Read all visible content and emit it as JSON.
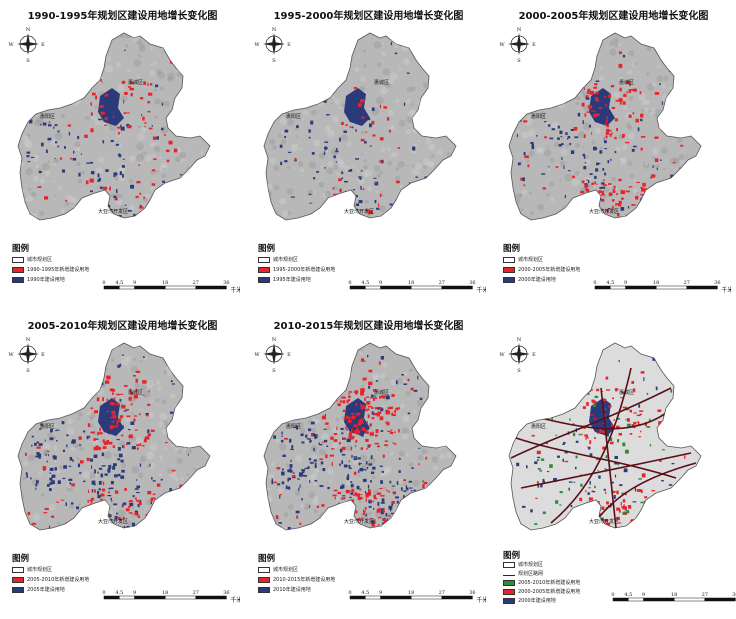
{
  "panels": [
    {
      "title": "1990-1995年规划区建设用地增长变化图",
      "legend_title": "图例",
      "legend": [
        {
          "label": "城市规划区",
          "color": "#ffffff"
        },
        {
          "label": "1990-1995年新增建设用地",
          "color": "#e8242a"
        },
        {
          "label": "1990年建设用地",
          "color": "#2b3a7a"
        }
      ],
      "mode": "early",
      "red_weight": 0.3
    },
    {
      "title": "1995-2000年规划区建设用地增长变化图",
      "legend_title": "图例",
      "legend": [
        {
          "label": "城市规划区",
          "color": "#ffffff"
        },
        {
          "label": "1995-2000年新增建设用地",
          "color": "#e8242a"
        },
        {
          "label": "1995年建设用地",
          "color": "#2b3a7a"
        }
      ],
      "mode": "early",
      "red_weight": 0.15
    },
    {
      "title": "2000-2005年规划区建设用地增长变化图",
      "legend_title": "图例",
      "legend": [
        {
          "label": "城市规划区",
          "color": "#ffffff"
        },
        {
          "label": "2000-2005年新增建设用地",
          "color": "#e8242a"
        },
        {
          "label": "2000年建设用地",
          "color": "#2b3a7a"
        }
      ],
      "mode": "mid",
      "red_weight": 0.6
    },
    {
      "title": "2005-2010年规划区建设用地增长变化图",
      "legend_title": "图例",
      "legend": [
        {
          "label": "城市规划区",
          "color": "#ffffff"
        },
        {
          "label": "2005-2010年新增建设用地",
          "color": "#e8242a"
        },
        {
          "label": "2005年建设用地",
          "color": "#2b3a7a"
        }
      ],
      "mode": "mid2",
      "red_weight": 0.7
    },
    {
      "title": "2010-2015年规划区建设用地增长变化图",
      "legend_title": "图例",
      "legend": [
        {
          "label": "城市规划区",
          "color": "#ffffff"
        },
        {
          "label": "2010-2015年新增建设用地",
          "color": "#e8242a"
        },
        {
          "label": "2010年建设用地",
          "color": "#2b3a7a"
        }
      ],
      "mode": "late",
      "red_weight": 1.0
    },
    {
      "title": "",
      "legend_title": "图例",
      "legend": [
        {
          "label": "城市规划区",
          "color": "#ffffff"
        },
        {
          "label": "规划区路网",
          "color": "line"
        },
        {
          "label": "2005-2010年新增建设用地",
          "color": "#2e8b3a"
        },
        {
          "label": "2000-2005年新增建设用地",
          "color": "#e8242a"
        },
        {
          "label": "2000年建设用地",
          "color": "#2b3a7a"
        }
      ],
      "mode": "roads",
      "red_weight": 0.5
    }
  ],
  "places": {
    "north": "惠城区",
    "west": "惠阳区",
    "south": "大亚湾开发区"
  },
  "scale": {
    "ticks": [
      "0",
      "4.5",
      "9",
      "18",
      "27",
      "36"
    ],
    "unit": "千米"
  },
  "compass": {
    "n": "N",
    "s": "S",
    "e": "E",
    "w": "W"
  },
  "colors": {
    "land": "#b8b8b8",
    "new": "#e8242a",
    "existing": "#2b3a7a",
    "green": "#2e8b3a",
    "plain": "#dcdcdc"
  }
}
